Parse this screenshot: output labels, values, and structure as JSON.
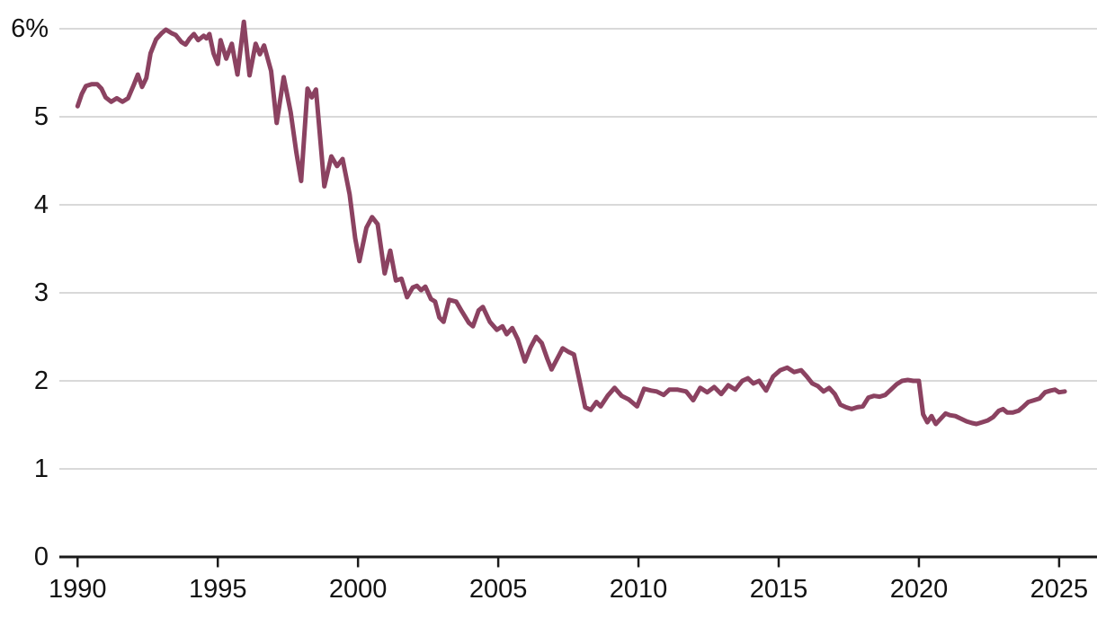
{
  "page": {
    "background": "#ffffff"
  },
  "chart_data": {
    "type": "line",
    "title": "",
    "subtitle": "",
    "xlabel": "",
    "ylabel": "",
    "legend": "none",
    "grid": "horizontal",
    "x_range": [
      1989.35,
      2026.35
    ],
    "y_range": [
      0,
      6
    ],
    "x_ticks": [
      {
        "value": 1990,
        "label": "1990"
      },
      {
        "value": 1995,
        "label": "1995"
      },
      {
        "value": 2000,
        "label": "2000"
      },
      {
        "value": 2005,
        "label": "2005"
      },
      {
        "value": 2010,
        "label": "2010"
      },
      {
        "value": 2015,
        "label": "2015"
      },
      {
        "value": 2020,
        "label": "2020"
      },
      {
        "value": 2025,
        "label": "2025"
      }
    ],
    "y_ticks": [
      {
        "value": 0,
        "label": "0"
      },
      {
        "value": 1,
        "label": "1"
      },
      {
        "value": 2,
        "label": "2"
      },
      {
        "value": 3,
        "label": "3"
      },
      {
        "value": 4,
        "label": "4"
      },
      {
        "value": 5,
        "label": "5"
      },
      {
        "value": 6,
        "label": "6%"
      }
    ],
    "colors": {
      "line": "#8b4261",
      "grid": "#d9d9d9",
      "axis": "#1a1a1a",
      "text": "#121212"
    },
    "series": [
      {
        "name": "percent",
        "points": [
          [
            1990.0,
            5.12
          ],
          [
            1990.15,
            5.26
          ],
          [
            1990.3,
            5.35
          ],
          [
            1990.5,
            5.37
          ],
          [
            1990.7,
            5.37
          ],
          [
            1990.85,
            5.32
          ],
          [
            1991.0,
            5.22
          ],
          [
            1991.2,
            5.17
          ],
          [
            1991.4,
            5.21
          ],
          [
            1991.6,
            5.17
          ],
          [
            1991.8,
            5.21
          ],
          [
            1992.0,
            5.36
          ],
          [
            1992.15,
            5.48
          ],
          [
            1992.3,
            5.34
          ],
          [
            1992.45,
            5.44
          ],
          [
            1992.6,
            5.72
          ],
          [
            1992.8,
            5.88
          ],
          [
            1993.0,
            5.95
          ],
          [
            1993.15,
            5.99
          ],
          [
            1993.35,
            5.95
          ],
          [
            1993.5,
            5.93
          ],
          [
            1993.7,
            5.85
          ],
          [
            1993.85,
            5.82
          ],
          [
            1994.0,
            5.89
          ],
          [
            1994.15,
            5.94
          ],
          [
            1994.3,
            5.87
          ],
          [
            1994.5,
            5.92
          ],
          [
            1994.6,
            5.89
          ],
          [
            1994.7,
            5.94
          ],
          [
            1994.85,
            5.72
          ],
          [
            1995.0,
            5.6
          ],
          [
            1995.1,
            5.87
          ],
          [
            1995.3,
            5.66
          ],
          [
            1995.5,
            5.83
          ],
          [
            1995.7,
            5.48
          ],
          [
            1995.93,
            6.08
          ],
          [
            1996.13,
            5.47
          ],
          [
            1996.35,
            5.83
          ],
          [
            1996.5,
            5.71
          ],
          [
            1996.65,
            5.81
          ],
          [
            1996.9,
            5.52
          ],
          [
            1997.1,
            4.93
          ],
          [
            1997.35,
            5.45
          ],
          [
            1997.6,
            5.05
          ],
          [
            1997.8,
            4.6
          ],
          [
            1997.97,
            4.27
          ],
          [
            1998.2,
            5.32
          ],
          [
            1998.35,
            5.22
          ],
          [
            1998.5,
            5.31
          ],
          [
            1998.8,
            4.21
          ],
          [
            1999.05,
            4.55
          ],
          [
            1999.25,
            4.44
          ],
          [
            1999.45,
            4.52
          ],
          [
            1999.7,
            4.12
          ],
          [
            1999.9,
            3.62
          ],
          [
            2000.05,
            3.36
          ],
          [
            2000.3,
            3.74
          ],
          [
            2000.5,
            3.86
          ],
          [
            2000.7,
            3.78
          ],
          [
            2000.95,
            3.22
          ],
          [
            2001.15,
            3.48
          ],
          [
            2001.35,
            3.14
          ],
          [
            2001.55,
            3.16
          ],
          [
            2001.75,
            2.95
          ],
          [
            2001.95,
            3.06
          ],
          [
            2002.1,
            3.08
          ],
          [
            2002.25,
            3.03
          ],
          [
            2002.4,
            3.07
          ],
          [
            2002.6,
            2.93
          ],
          [
            2002.75,
            2.9
          ],
          [
            2002.9,
            2.72
          ],
          [
            2003.05,
            2.67
          ],
          [
            2003.25,
            2.92
          ],
          [
            2003.5,
            2.9
          ],
          [
            2003.7,
            2.79
          ],
          [
            2003.95,
            2.66
          ],
          [
            2004.1,
            2.62
          ],
          [
            2004.3,
            2.8
          ],
          [
            2004.45,
            2.84
          ],
          [
            2004.7,
            2.67
          ],
          [
            2004.95,
            2.58
          ],
          [
            2005.15,
            2.62
          ],
          [
            2005.3,
            2.53
          ],
          [
            2005.5,
            2.6
          ],
          [
            2005.7,
            2.47
          ],
          [
            2005.95,
            2.22
          ],
          [
            2006.15,
            2.38
          ],
          [
            2006.35,
            2.5
          ],
          [
            2006.55,
            2.43
          ],
          [
            2006.75,
            2.25
          ],
          [
            2006.9,
            2.13
          ],
          [
            2007.1,
            2.25
          ],
          [
            2007.3,
            2.37
          ],
          [
            2007.5,
            2.33
          ],
          [
            2007.7,
            2.3
          ],
          [
            2007.9,
            2.0
          ],
          [
            2008.1,
            1.7
          ],
          [
            2008.3,
            1.67
          ],
          [
            2008.5,
            1.76
          ],
          [
            2008.65,
            1.71
          ],
          [
            2008.9,
            1.83
          ],
          [
            2009.15,
            1.92
          ],
          [
            2009.4,
            1.83
          ],
          [
            2009.65,
            1.79
          ],
          [
            2009.95,
            1.71
          ],
          [
            2010.2,
            1.91
          ],
          [
            2010.45,
            1.89
          ],
          [
            2010.65,
            1.88
          ],
          [
            2010.9,
            1.84
          ],
          [
            2011.1,
            1.9
          ],
          [
            2011.4,
            1.9
          ],
          [
            2011.7,
            1.88
          ],
          [
            2011.95,
            1.78
          ],
          [
            2012.2,
            1.92
          ],
          [
            2012.45,
            1.87
          ],
          [
            2012.7,
            1.93
          ],
          [
            2012.95,
            1.85
          ],
          [
            2013.2,
            1.95
          ],
          [
            2013.45,
            1.9
          ],
          [
            2013.7,
            2.0
          ],
          [
            2013.9,
            2.03
          ],
          [
            2014.1,
            1.97
          ],
          [
            2014.3,
            2.0
          ],
          [
            2014.55,
            1.89
          ],
          [
            2014.8,
            2.05
          ],
          [
            2015.05,
            2.12
          ],
          [
            2015.3,
            2.15
          ],
          [
            2015.55,
            2.1
          ],
          [
            2015.8,
            2.12
          ],
          [
            2016.0,
            2.05
          ],
          [
            2016.2,
            1.97
          ],
          [
            2016.4,
            1.94
          ],
          [
            2016.6,
            1.88
          ],
          [
            2016.8,
            1.92
          ],
          [
            2017.0,
            1.85
          ],
          [
            2017.2,
            1.73
          ],
          [
            2017.4,
            1.7
          ],
          [
            2017.6,
            1.68
          ],
          [
            2017.8,
            1.7
          ],
          [
            2018.0,
            1.71
          ],
          [
            2018.2,
            1.81
          ],
          [
            2018.4,
            1.83
          ],
          [
            2018.6,
            1.82
          ],
          [
            2018.8,
            1.84
          ],
          [
            2019.0,
            1.9
          ],
          [
            2019.2,
            1.96
          ],
          [
            2019.4,
            2.0
          ],
          [
            2019.6,
            2.01
          ],
          [
            2019.8,
            2.0
          ],
          [
            2020.0,
            2.0
          ],
          [
            2020.15,
            1.62
          ],
          [
            2020.3,
            1.53
          ],
          [
            2020.45,
            1.6
          ],
          [
            2020.6,
            1.51
          ],
          [
            2020.75,
            1.56
          ],
          [
            2020.95,
            1.63
          ],
          [
            2021.1,
            1.61
          ],
          [
            2021.3,
            1.6
          ],
          [
            2021.5,
            1.57
          ],
          [
            2021.7,
            1.54
          ],
          [
            2021.9,
            1.52
          ],
          [
            2022.05,
            1.51
          ],
          [
            2022.25,
            1.53
          ],
          [
            2022.45,
            1.55
          ],
          [
            2022.65,
            1.59
          ],
          [
            2022.85,
            1.66
          ],
          [
            2023.0,
            1.68
          ],
          [
            2023.15,
            1.64
          ],
          [
            2023.35,
            1.64
          ],
          [
            2023.55,
            1.66
          ],
          [
            2023.7,
            1.7
          ],
          [
            2023.9,
            1.76
          ],
          [
            2024.1,
            1.78
          ],
          [
            2024.3,
            1.8
          ],
          [
            2024.5,
            1.87
          ],
          [
            2024.7,
            1.89
          ],
          [
            2024.85,
            1.9
          ],
          [
            2025.0,
            1.87
          ],
          [
            2025.2,
            1.88
          ]
        ]
      }
    ]
  }
}
